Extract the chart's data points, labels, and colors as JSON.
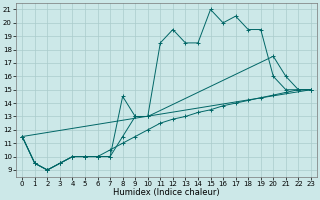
{
  "xlabel": "Humidex (Indice chaleur)",
  "bg_color": "#cce8e8",
  "grid_color": "#aacccc",
  "line_color": "#006666",
  "xlim": [
    -0.5,
    23.5
  ],
  "ylim": [
    8.5,
    21.5
  ],
  "xticks": [
    0,
    1,
    2,
    3,
    4,
    5,
    6,
    7,
    8,
    9,
    10,
    11,
    12,
    13,
    14,
    15,
    16,
    17,
    18,
    19,
    20,
    21,
    22,
    23
  ],
  "yticks": [
    9,
    10,
    11,
    12,
    13,
    14,
    15,
    16,
    17,
    18,
    19,
    20,
    21
  ],
  "s1x": [
    0,
    1,
    2,
    3,
    4,
    5,
    6,
    7,
    8,
    9,
    10,
    11,
    12,
    13,
    14,
    15,
    16,
    17,
    18,
    19,
    20,
    21,
    22,
    23
  ],
  "s1y": [
    11.5,
    9.5,
    9.0,
    9.5,
    10.0,
    10.0,
    10.0,
    10.0,
    11.5,
    13.0,
    13.0,
    18.5,
    19.5,
    18.5,
    18.5,
    21.0,
    20.0,
    20.5,
    19.5,
    19.5,
    16.0,
    15.0,
    15.0,
    15.0
  ],
  "s2x": [
    0,
    1,
    2,
    3,
    4,
    5,
    6,
    7,
    8,
    9,
    10,
    20,
    21,
    22,
    23
  ],
  "s2y": [
    11.5,
    9.5,
    9.0,
    9.5,
    10.0,
    10.0,
    10.0,
    10.0,
    14.5,
    13.0,
    13.0,
    17.5,
    16.0,
    15.0,
    15.0
  ],
  "s3x": [
    0,
    23
  ],
  "s3y": [
    11.5,
    15.0
  ],
  "s4x": [
    0,
    1,
    2,
    3,
    4,
    5,
    6,
    7,
    8,
    9,
    10,
    11,
    12,
    13,
    14,
    15,
    16,
    17,
    18,
    19,
    20,
    21,
    22,
    23
  ],
  "s4y": [
    11.5,
    9.5,
    9.0,
    9.5,
    10.0,
    10.0,
    10.0,
    10.5,
    11.0,
    11.5,
    12.0,
    12.5,
    12.8,
    13.0,
    13.3,
    13.5,
    13.8,
    14.0,
    14.2,
    14.4,
    14.6,
    14.8,
    15.0,
    15.0
  ],
  "xlabel_fontsize": 6,
  "tick_fontsize": 5
}
